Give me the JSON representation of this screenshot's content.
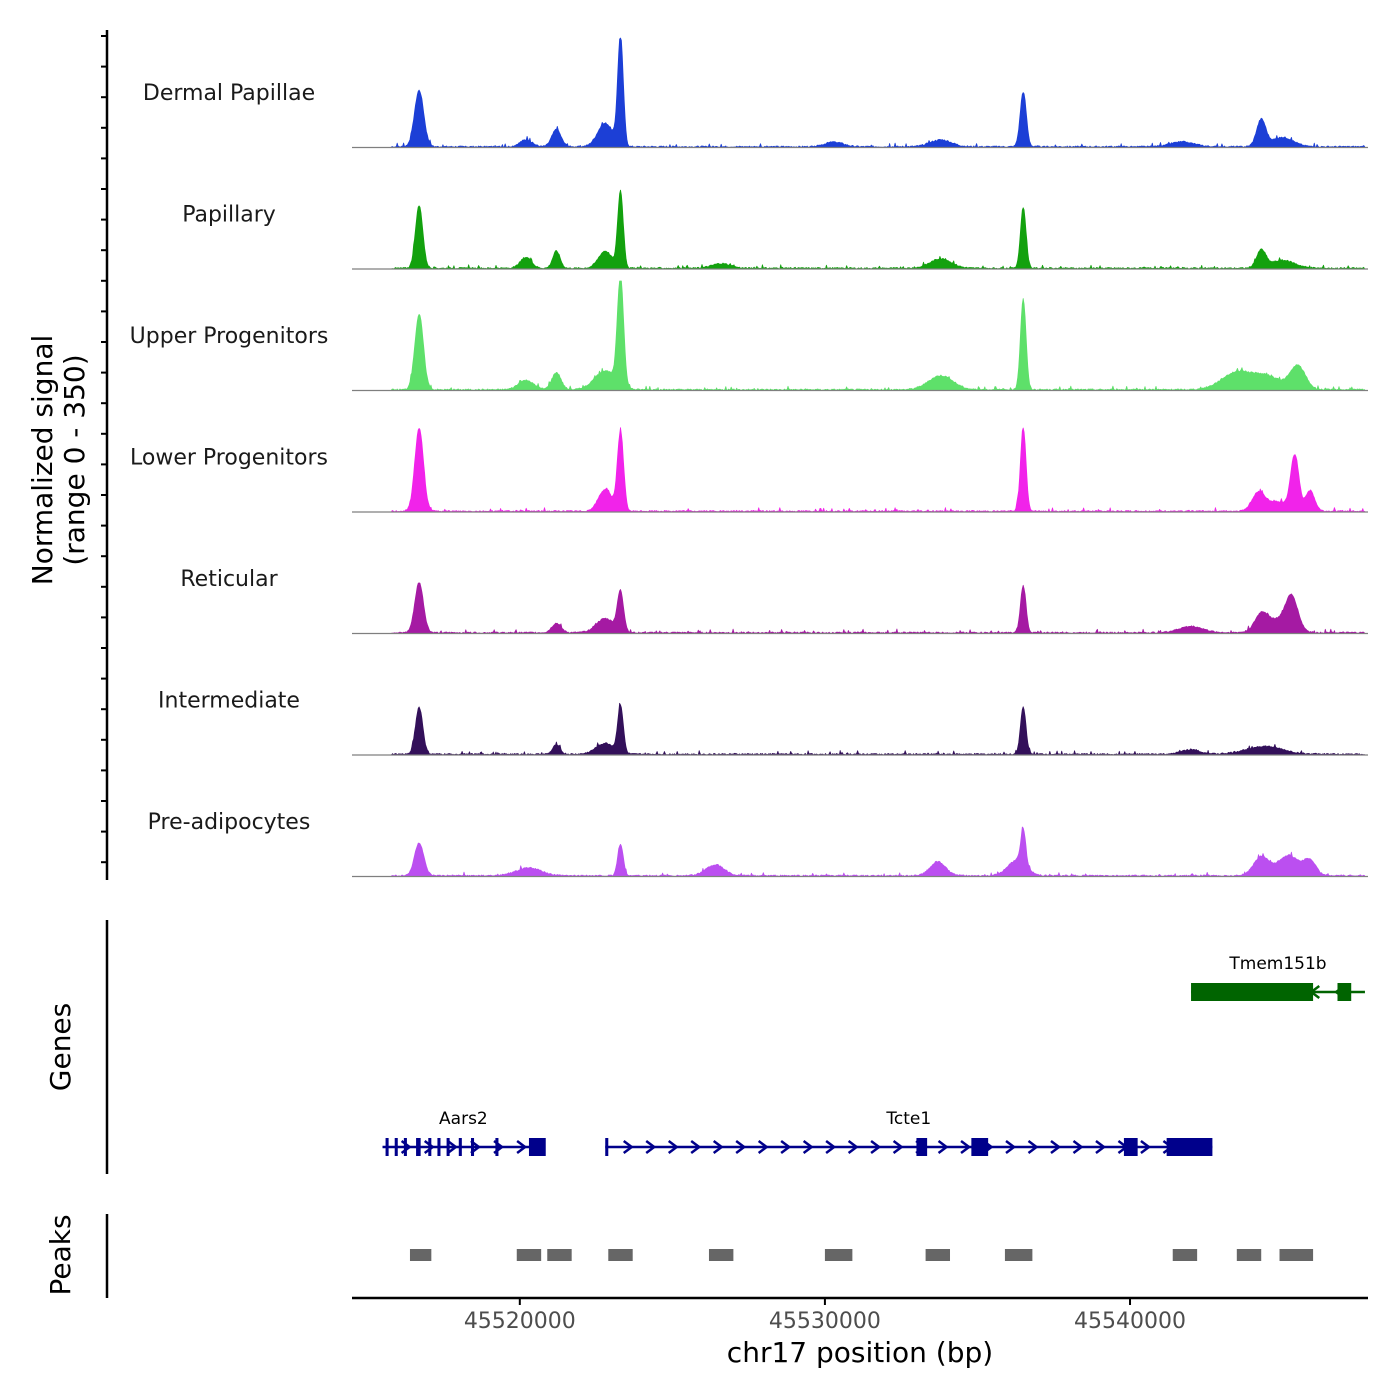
{
  "chart_data": {
    "type": "area",
    "title": "",
    "chromosome": "chr17",
    "xlabel": "chr17 position (bp)",
    "ylabel": "Normalized signal",
    "ylabel_range": "(range 0 - 350)",
    "ylim": [
      0,
      350
    ],
    "xlim": [
      45514500,
      45547800
    ],
    "x_ticks": [
      45520000,
      45530000,
      45540000
    ],
    "x_tick_labels": [
      "45520000",
      "45530000",
      "45540000"
    ],
    "series": [
      {
        "name": "Dermal Papillae",
        "color": "#1c3fd6",
        "peaks": [
          {
            "pos": 45516700,
            "height": 180,
            "width": 150
          },
          {
            "pos": 45520200,
            "height": 22,
            "width": 200
          },
          {
            "pos": 45521200,
            "height": 55,
            "width": 150
          },
          {
            "pos": 45522800,
            "height": 75,
            "width": 250
          },
          {
            "pos": 45523300,
            "height": 350,
            "width": 90
          },
          {
            "pos": 45530300,
            "height": 15,
            "width": 300
          },
          {
            "pos": 45533800,
            "height": 22,
            "width": 350
          },
          {
            "pos": 45536500,
            "height": 175,
            "width": 100
          },
          {
            "pos": 45541700,
            "height": 15,
            "width": 400
          },
          {
            "pos": 45544300,
            "height": 85,
            "width": 150
          },
          {
            "pos": 45545000,
            "height": 30,
            "width": 350
          }
        ]
      },
      {
        "name": "Papillary",
        "color": "#13a10e",
        "peaks": [
          {
            "pos": 45516700,
            "height": 200,
            "width": 120
          },
          {
            "pos": 45520200,
            "height": 35,
            "width": 180
          },
          {
            "pos": 45521200,
            "height": 55,
            "width": 120
          },
          {
            "pos": 45522800,
            "height": 55,
            "width": 220
          },
          {
            "pos": 45523300,
            "height": 245,
            "width": 90
          },
          {
            "pos": 45526600,
            "height": 15,
            "width": 300
          },
          {
            "pos": 45533800,
            "height": 30,
            "width": 350
          },
          {
            "pos": 45536500,
            "height": 195,
            "width": 90
          },
          {
            "pos": 45544300,
            "height": 55,
            "width": 150
          },
          {
            "pos": 45545000,
            "height": 25,
            "width": 400
          }
        ]
      },
      {
        "name": "Upper Progenitors",
        "color": "#5ee06a",
        "peaks": [
          {
            "pos": 45516700,
            "height": 240,
            "width": 140
          },
          {
            "pos": 45520200,
            "height": 30,
            "width": 250
          },
          {
            "pos": 45521200,
            "height": 55,
            "width": 150
          },
          {
            "pos": 45522800,
            "height": 60,
            "width": 350
          },
          {
            "pos": 45523300,
            "height": 350,
            "width": 100
          },
          {
            "pos": 45533800,
            "height": 45,
            "width": 400
          },
          {
            "pos": 45536500,
            "height": 290,
            "width": 90
          },
          {
            "pos": 45543500,
            "height": 55,
            "width": 500
          },
          {
            "pos": 45545500,
            "height": 75,
            "width": 250
          },
          {
            "pos": 45544500,
            "height": 40,
            "width": 450
          }
        ]
      },
      {
        "name": "Lower Progenitors",
        "color": "#f123ea",
        "peaks": [
          {
            "pos": 45516700,
            "height": 265,
            "width": 140
          },
          {
            "pos": 45522800,
            "height": 70,
            "width": 220
          },
          {
            "pos": 45523300,
            "height": 250,
            "width": 100
          },
          {
            "pos": 45536500,
            "height": 265,
            "width": 90
          },
          {
            "pos": 45544200,
            "height": 50,
            "width": 200
          },
          {
            "pos": 45545400,
            "height": 170,
            "width": 130
          },
          {
            "pos": 45545900,
            "height": 65,
            "width": 150
          },
          {
            "pos": 45544800,
            "height": 30,
            "width": 450
          }
        ]
      },
      {
        "name": "Reticular",
        "color": "#a51aa3",
        "peaks": [
          {
            "pos": 45516700,
            "height": 160,
            "width": 140
          },
          {
            "pos": 45521200,
            "height": 30,
            "width": 150
          },
          {
            "pos": 45522800,
            "height": 45,
            "width": 300
          },
          {
            "pos": 45523300,
            "height": 125,
            "width": 100
          },
          {
            "pos": 45536500,
            "height": 150,
            "width": 90
          },
          {
            "pos": 45542000,
            "height": 20,
            "width": 400
          },
          {
            "pos": 45544300,
            "height": 45,
            "width": 200
          },
          {
            "pos": 45545300,
            "height": 100,
            "width": 200
          },
          {
            "pos": 45544800,
            "height": 40,
            "width": 450
          }
        ]
      },
      {
        "name": "Intermediate",
        "color": "#33105a",
        "peaks": [
          {
            "pos": 45516700,
            "height": 150,
            "width": 120
          },
          {
            "pos": 45521200,
            "height": 30,
            "width": 120
          },
          {
            "pos": 45522800,
            "height": 35,
            "width": 300
          },
          {
            "pos": 45523300,
            "height": 150,
            "width": 90
          },
          {
            "pos": 45536500,
            "height": 150,
            "width": 90
          },
          {
            "pos": 45542000,
            "height": 15,
            "width": 300
          },
          {
            "pos": 45544400,
            "height": 25,
            "width": 600
          }
        ]
      },
      {
        "name": "Pre-adipocytes",
        "color": "#bb4ff0",
        "peaks": [
          {
            "pos": 45516700,
            "height": 105,
            "width": 150
          },
          {
            "pos": 45520300,
            "height": 25,
            "width": 400
          },
          {
            "pos": 45523300,
            "height": 100,
            "width": 90
          },
          {
            "pos": 45526400,
            "height": 35,
            "width": 300
          },
          {
            "pos": 45533700,
            "height": 45,
            "width": 250
          },
          {
            "pos": 45536300,
            "height": 50,
            "width": 300
          },
          {
            "pos": 45536500,
            "height": 110,
            "width": 80
          },
          {
            "pos": 45544300,
            "height": 60,
            "width": 250
          },
          {
            "pos": 45545200,
            "height": 65,
            "width": 350
          },
          {
            "pos": 45545900,
            "height": 45,
            "width": 200
          }
        ]
      }
    ],
    "genes_label": "Genes",
    "genes": [
      {
        "name": "Tmem151b",
        "color": "#006400",
        "strand": "-",
        "row": 0,
        "start": 45542000,
        "end": 45547700,
        "exons": [
          [
            45542000,
            45546000
          ],
          [
            45546800,
            45547250
          ]
        ]
      },
      {
        "name": "Aars2",
        "color": "#00008b",
        "strand": "+",
        "row": 1,
        "start": 45515500,
        "end": 45520800,
        "exons": [
          [
            45515600,
            45515700
          ],
          [
            45515900,
            45516000
          ],
          [
            45516200,
            45516300
          ],
          [
            45516600,
            45516750
          ],
          [
            45517000,
            45517100
          ],
          [
            45517300,
            45517400
          ],
          [
            45517600,
            45517700
          ],
          [
            45518000,
            45518100
          ],
          [
            45518400,
            45518500
          ],
          [
            45519200,
            45519300
          ],
          [
            45520300,
            45520850
          ]
        ]
      },
      {
        "name": "Tcte1",
        "color": "#00008b",
        "strand": "+",
        "row": 1,
        "start": 45522800,
        "end": 45542700,
        "exons": [
          [
            45522800,
            45522900
          ],
          [
            45533000,
            45533350
          ],
          [
            45534800,
            45535350
          ],
          [
            45539800,
            45540250
          ],
          [
            45541200,
            45542700
          ]
        ]
      }
    ],
    "peaks_label": "Peaks",
    "peak_regions": [
      [
        45516400,
        45517100
      ],
      [
        45519900,
        45520700
      ],
      [
        45520900,
        45521700
      ],
      [
        45522900,
        45523700
      ],
      [
        45526200,
        45527000
      ],
      [
        45530000,
        45530900
      ],
      [
        45533300,
        45534100
      ],
      [
        45535900,
        45536800
      ],
      [
        45541400,
        45542200
      ],
      [
        45543500,
        45544300
      ],
      [
        45544900,
        45546000
      ]
    ]
  }
}
